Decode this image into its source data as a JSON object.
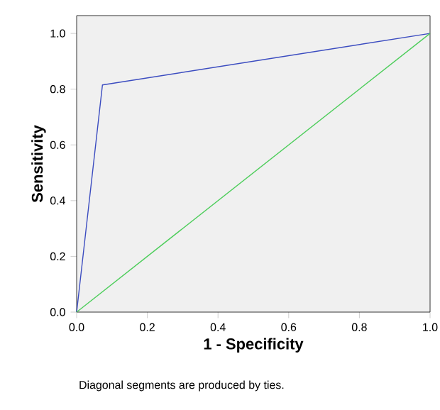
{
  "chart_data": {
    "type": "line",
    "xlabel": "1 - Specificity",
    "ylabel": "Sensitivity",
    "annotations": [
      "Diagonal segments are produced by ties."
    ],
    "series": [
      {
        "color": "#3b4cc0",
        "x": [
          0.0,
          0.073,
          1.0
        ],
        "values": [
          0.0,
          0.815,
          1.0
        ]
      },
      {
        "color": "#4ccd5a",
        "x": [
          0.0,
          1.0
        ],
        "values": [
          0.0,
          1.0
        ]
      }
    ],
    "xlim": [
      0,
      1.0
    ],
    "ylim": [
      0,
      1.064
    ],
    "xticks": [
      {
        "value": 0,
        "label": "0.0"
      },
      {
        "value": 0.2,
        "label": "0.2"
      },
      {
        "value": 0.4,
        "label": "0.4"
      },
      {
        "value": 0.6,
        "label": "0.6"
      },
      {
        "value": 0.8,
        "label": "0.8"
      },
      {
        "value": 1.0,
        "label": "1.0"
      }
    ],
    "yticks": [
      {
        "value": 0,
        "label": "0.0"
      },
      {
        "value": 0.2,
        "label": "0.2"
      },
      {
        "value": 0.4,
        "label": "0.4"
      },
      {
        "value": 0.6,
        "label": "0.6"
      },
      {
        "value": 0.8,
        "label": "0.8"
      },
      {
        "value": 1.0,
        "label": "1.0"
      }
    ],
    "grid": false,
    "marker": "none",
    "line_style": "solid"
  }
}
